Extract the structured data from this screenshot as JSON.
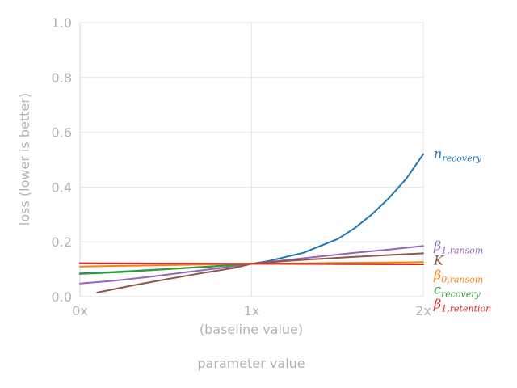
{
  "chart_data": {
    "type": "line",
    "xlabel": "parameter value",
    "x_sublabel": "(baseline value)",
    "ylabel": "loss (lower is better)",
    "xlim": [
      0,
      2
    ],
    "ylim": [
      0,
      1
    ],
    "x_ticks": [
      {
        "value": 0,
        "label": "0x"
      },
      {
        "value": 1,
        "label": "1x"
      },
      {
        "value": 2,
        "label": "2x"
      }
    ],
    "y_ticks": [
      {
        "value": 0.0,
        "label": "0.0"
      },
      {
        "value": 0.2,
        "label": "0.2"
      },
      {
        "value": 0.4,
        "label": "0.4"
      },
      {
        "value": 0.6,
        "label": "0.6"
      },
      {
        "value": 0.8,
        "label": "0.8"
      },
      {
        "value": 1.0,
        "label": "1.0"
      }
    ],
    "grid": true,
    "legend": "inline labels at right end of each series",
    "series": [
      {
        "name": "n_recovery",
        "base": "n",
        "sub": "recovery",
        "color": "#1f77b4",
        "x": [
          0.0,
          0.2,
          0.4,
          0.6,
          0.8,
          1.0,
          1.1,
          1.2,
          1.3,
          1.4,
          1.5,
          1.6,
          1.7,
          1.8,
          1.9,
          2.0
        ],
        "y": [
          0.085,
          0.09,
          0.097,
          0.104,
          0.111,
          0.12,
          0.13,
          0.145,
          0.16,
          0.185,
          0.21,
          0.25,
          0.3,
          0.36,
          0.43,
          0.52
        ]
      },
      {
        "name": "beta_1,ransom",
        "base": "β",
        "sub": "1,ransom",
        "color": "#9467bd",
        "x": [
          0.0,
          0.2,
          0.4,
          0.6,
          0.8,
          1.0,
          1.2,
          1.4,
          1.6,
          1.8,
          2.0
        ],
        "y": [
          0.048,
          0.058,
          0.072,
          0.088,
          0.103,
          0.12,
          0.133,
          0.147,
          0.16,
          0.172,
          0.185
        ]
      },
      {
        "name": "K",
        "base": "K",
        "sub": "",
        "color": "#8c564b",
        "x": [
          0.1,
          0.3,
          0.5,
          0.7,
          0.9,
          1.0,
          1.2,
          1.4,
          1.6,
          1.8,
          2.0
        ],
        "y": [
          0.015,
          0.04,
          0.063,
          0.085,
          0.105,
          0.12,
          0.13,
          0.138,
          0.145,
          0.152,
          0.158
        ]
      },
      {
        "name": "beta_0,ransom",
        "base": "β",
        "sub": "0,ransom",
        "color": "#ff7f0e",
        "x": [
          0.0,
          0.5,
          1.0,
          1.5,
          2.0
        ],
        "y": [
          0.11,
          0.115,
          0.12,
          0.123,
          0.126
        ]
      },
      {
        "name": "c_recovery",
        "base": "c",
        "sub": "recovery",
        "color": "#2ca02c",
        "x": [
          0.0,
          0.25,
          0.5,
          0.75,
          1.0,
          1.5,
          2.0
        ],
        "y": [
          0.083,
          0.09,
          0.1,
          0.11,
          0.12,
          0.12,
          0.118
        ]
      },
      {
        "name": "beta_1,retention",
        "base": "β",
        "sub": "1,retention",
        "color": "#d62728",
        "x": [
          0.0,
          0.5,
          1.0,
          1.5,
          2.0
        ],
        "y": [
          0.122,
          0.121,
          0.12,
          0.119,
          0.118
        ]
      }
    ]
  }
}
